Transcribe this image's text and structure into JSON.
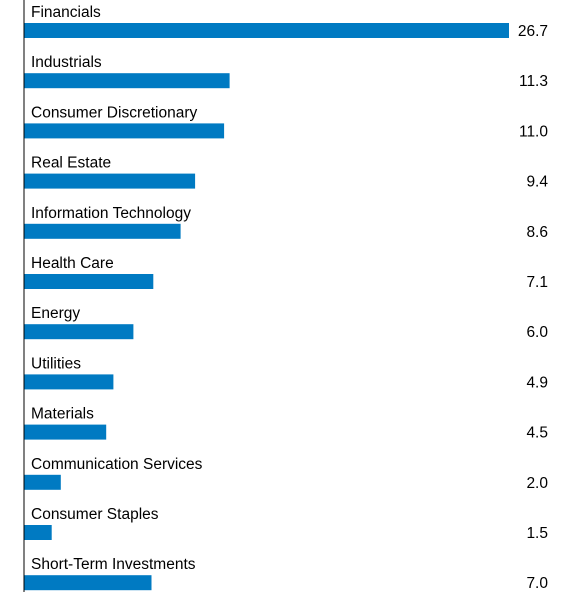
{
  "chart_data": {
    "type": "bar",
    "orientation": "horizontal",
    "categories": [
      "Financials",
      "Industrials",
      "Consumer Discretionary",
      "Real Estate",
      "Information Technology",
      "Health Care",
      "Energy",
      "Utilities",
      "Materials",
      "Communication Services",
      "Consumer Staples",
      "Short-Term Investments"
    ],
    "values": [
      26.7,
      11.3,
      11.0,
      9.4,
      8.6,
      7.1,
      6.0,
      4.9,
      4.5,
      2.0,
      1.5,
      7.0
    ],
    "value_labels": [
      "26.7",
      "11.3",
      "11.0",
      "9.4",
      "8.6",
      "7.1",
      "6.0",
      "4.9",
      "4.5",
      "2.0",
      "1.5",
      "7.0"
    ],
    "title": "",
    "xlabel": "",
    "ylabel": "",
    "xlim": [
      0,
      26.7
    ],
    "grid": false,
    "legend": "none",
    "bar_color": "#007ac2",
    "axis_color": "#000000"
  }
}
